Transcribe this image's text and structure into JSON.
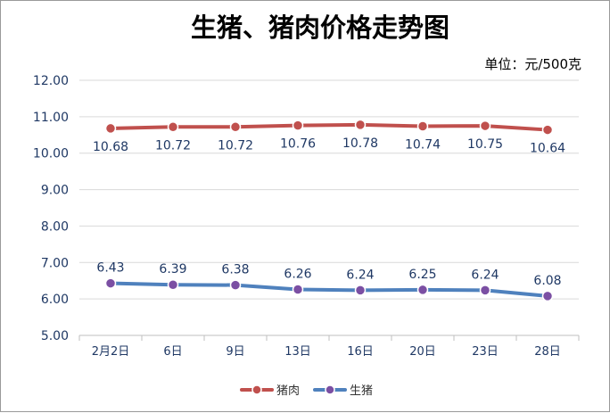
{
  "chart_data": {
    "type": "line",
    "title": "生猪、猪肉价格走势图",
    "unit": "单位：元/500克",
    "categories": [
      "2月2日",
      "6日",
      "9日",
      "13日",
      "16日",
      "20日",
      "23日",
      "28日"
    ],
    "series": [
      {
        "name": "猪肉",
        "values": [
          10.68,
          10.72,
          10.72,
          10.76,
          10.78,
          10.74,
          10.75,
          10.64
        ],
        "labels": [
          "10.68",
          "10.72",
          "10.72",
          "10.76",
          "10.78",
          "10.74",
          "10.75",
          "10.64"
        ],
        "color": "#c0504d",
        "marker_color": "#c0504d",
        "label_position": "below"
      },
      {
        "name": "生猪",
        "values": [
          6.43,
          6.39,
          6.38,
          6.26,
          6.24,
          6.25,
          6.24,
          6.08
        ],
        "labels": [
          "6.43",
          "6.39",
          "6.38",
          "6.26",
          "6.24",
          "6.25",
          "6.24",
          "6.08"
        ],
        "color": "#4f81bd",
        "marker_color": "#7b4fa3",
        "label_position": "above"
      }
    ],
    "ylim": [
      5.0,
      12.0
    ],
    "yticks": [
      "5.00",
      "6.00",
      "7.00",
      "8.00",
      "9.00",
      "10.00",
      "11.00",
      "12.00"
    ],
    "grid": true,
    "legend_position": "bottom"
  }
}
